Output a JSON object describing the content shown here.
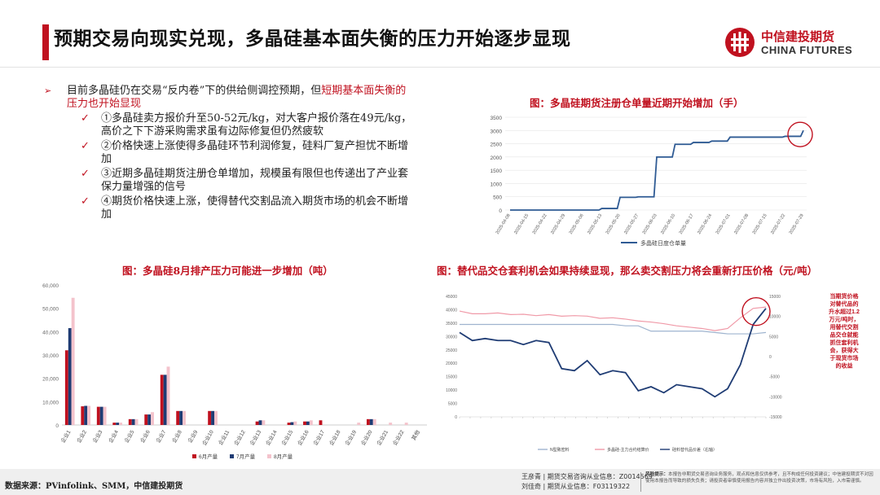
{
  "header": {
    "title": "预期交易向现实兑现，多晶硅基本面失衡的压力开始逐步显现",
    "logo_cn": "中信建投期货",
    "logo_en": "CHINA FUTURES"
  },
  "bullets": {
    "main_text": "目前多晶硅仍在交易“反内卷”下的供给侧调控预期，但",
    "main_highlight": "短期基本面失衡的压力也开始显现",
    "subs": [
      "①多晶硅卖方报价升至50-52元/kg，对大客户报价落在49元/kg，高价之下下游采购需求虽有边际修复但仍然疲软",
      "②价格快速上涨使得多晶硅环节利润修复，硅料厂复产担忧不断增加",
      "③近期多晶硅期货注册仓单增加，规模虽有限但也传递出了产业套保力量增强的信号",
      "④期货价格快速上涨，使得替代交割品流入期货市场的机会不断增加"
    ]
  },
  "colors": {
    "accent": "#c0111f",
    "navy": "#1f3c74",
    "pink": "#f4c3cc",
    "line_blue": "#2f5b94"
  },
  "chart_data": [
    {
      "type": "line",
      "title": "图：多晶硅期货注册仓单量近期开始增加（手）",
      "x": [
        "2025-04-08",
        "2025-04-15",
        "2025-04-22",
        "2025-04-29",
        "2025-05-06",
        "2025-05-13",
        "2025-05-20",
        "2025-05-27",
        "2025-06-03",
        "2025-06-10",
        "2025-06-17",
        "2025-06-24",
        "2025-07-01",
        "2025-07-08",
        "2025-07-15",
        "2025-07-22",
        "2025-07-29"
      ],
      "series": [
        {
          "name": "多晶硅日度仓单量",
          "values": [
            0,
            0,
            0,
            0,
            0,
            60,
            480,
            500,
            2000,
            2480,
            2550,
            2600,
            2750,
            2750,
            2750,
            2780,
            3000
          ]
        }
      ],
      "ylim": [
        0,
        3500
      ],
      "yticks": [
        "0",
        "500",
        "1000",
        "1500",
        "2000",
        "2500",
        "3000",
        "3500"
      ],
      "annotation": "highlight circle on latest values"
    },
    {
      "type": "bar",
      "title": "图：多晶硅8月排产压力可能进一步增加（吨）",
      "categories": [
        "企业1",
        "企业2",
        "企业3",
        "企业4",
        "企业5",
        "企业6",
        "企业7",
        "企业8",
        "企业9",
        "企业10",
        "企业11",
        "企业12",
        "企业13",
        "企业14",
        "企业15",
        "企业16",
        "企业17",
        "企业18",
        "企业19",
        "企业20",
        "企业21",
        "企业22",
        "其他"
      ],
      "series": [
        {
          "name": "6月产量",
          "values": [
            32000,
            8000,
            7800,
            1000,
            2500,
            4500,
            21500,
            6000,
            0,
            6000,
            0,
            0,
            1500,
            0,
            1000,
            1500,
            2000,
            0,
            0,
            2500,
            0,
            0,
            0
          ]
        },
        {
          "name": "7月产量",
          "values": [
            41500,
            8200,
            7800,
            1000,
            2500,
            4500,
            21500,
            6000,
            0,
            6000,
            0,
            0,
            2000,
            0,
            1200,
            1500,
            0,
            0,
            0,
            2500,
            0,
            0,
            0
          ]
        },
        {
          "name": "8月产量",
          "values": [
            54500,
            8200,
            7800,
            1000,
            2500,
            5500,
            25000,
            6000,
            0,
            6000,
            0,
            0,
            2000,
            0,
            1500,
            2000,
            0,
            0,
            1000,
            2500,
            1000,
            1000,
            0
          ]
        }
      ],
      "ylim": [
        0,
        60000
      ],
      "yticks": [
        "0",
        "10,000",
        "20,000",
        "30,000",
        "40,000",
        "50,000",
        "60,000"
      ]
    },
    {
      "type": "line",
      "title": "图：替代品交仓套利机会如果持续显现，那么卖交割压力将会重新打压价格（元/吨）",
      "legend": [
        "N型致密料",
        "多晶硅-主力合约结算价",
        "硅料替代品价差（右轴）"
      ],
      "annotation": "当期货价格对替代品的升水超过1.2万元/吨时，用替代交割品交仓就能抓住套利机会，获得大于现货市场的收益",
      "series": [
        {
          "name": "N型致密料",
          "values": [
            34500,
            34500,
            34500,
            34500,
            34500,
            34500,
            34500,
            34500,
            34500,
            34500,
            34500,
            34500,
            34500,
            34000,
            34000,
            32000,
            32000,
            32000,
            32000,
            32000,
            31500,
            31000,
            31000,
            31000,
            31500
          ]
        },
        {
          "name": "多晶硅-主力合约结算价",
          "values": [
            39500,
            38500,
            38500,
            38800,
            38200,
            38300,
            37800,
            38200,
            37600,
            37800,
            37600,
            36800,
            37000,
            36500,
            35800,
            35400,
            34800,
            34000,
            33500,
            33000,
            32200,
            33000,
            37000,
            40500,
            41000
          ]
        },
        {
          "name": "硅料替代品价差（右轴）",
          "values": [
            6000,
            4000,
            4500,
            4000,
            4000,
            3000,
            4000,
            3500,
            -3000,
            -3500,
            -1000,
            -4500,
            -3500,
            -4000,
            -8500,
            -7500,
            -9000,
            -7000,
            -7500,
            -8000,
            -10000,
            -8000,
            -2000,
            8000,
            12000
          ]
        }
      ],
      "ylim": [
        0,
        45000
      ],
      "ylim_right": [
        -15000,
        15000
      ],
      "yticks": [
        "0",
        "5000",
        "10000",
        "15000",
        "20000",
        "25000",
        "30000",
        "35000",
        "40000",
        "45000"
      ],
      "yticks_right": [
        "-15000",
        "-10000",
        "-5000",
        "0",
        "5000",
        "10000",
        "15000"
      ]
    }
  ],
  "footer": {
    "source": "数据来源：PVinfolink、SMM，中信建投期货",
    "author1": "王彦青 | 期货交易咨询从业信息：Z0014569",
    "author2": "刘佳奇 | 期货从业信息：F03119322",
    "risk_label": "风险提示：",
    "risk_text": "本报告非期货交易咨询业务服务，观点和信息仅供参考，且不构成任何投资建议；中信建投期货不对因使用本报告而导致的损失负责；请投资者审慎使用报告内容并独立作出投资决策，市场有风险，入市需谨慎。"
  }
}
